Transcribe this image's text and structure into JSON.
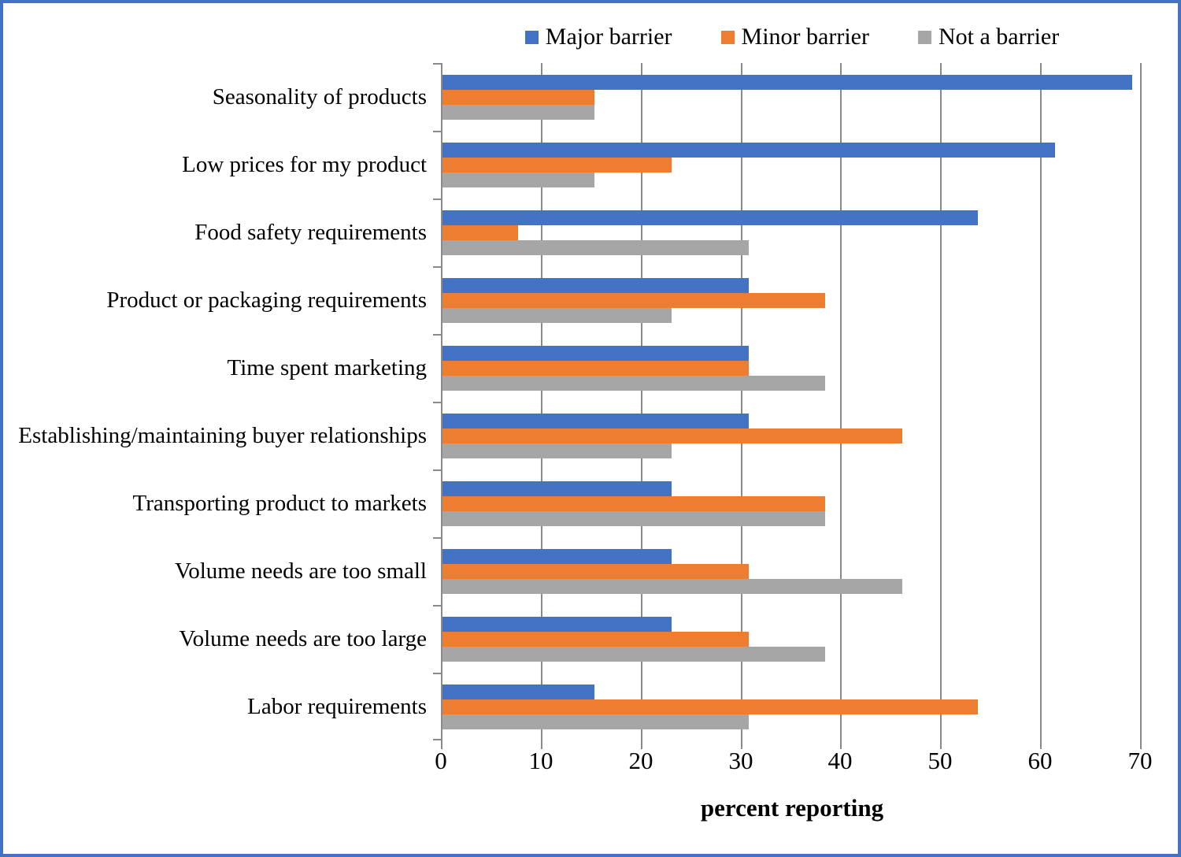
{
  "legend": [
    {
      "label": "Major barrier",
      "color": "#4472C4"
    },
    {
      "label": "Minor barrier",
      "color": "#ED7D31"
    },
    {
      "label": "Not a barrier",
      "color": "#A6A6A6"
    }
  ],
  "chart_data": {
    "type": "bar",
    "orientation": "horizontal",
    "title": "",
    "xlabel": "percent reporting",
    "ylabel": "",
    "xlim": [
      0,
      70
    ],
    "x_ticks": [
      0,
      10,
      20,
      30,
      40,
      50,
      60,
      70
    ],
    "grid": true,
    "legend_position": "top",
    "categories": [
      "Seasonality of products",
      "Low prices for my product",
      "Food safety requirements",
      "Product or packaging requirements",
      "Time spent marketing",
      "Establishing/maintaining buyer relationships",
      "Transporting product to markets",
      "Volume needs are too small",
      "Volume needs are too large",
      "Labor requirements"
    ],
    "series": [
      {
        "name": "Major barrier",
        "color": "#4472C4",
        "values": [
          69.2,
          61.5,
          53.8,
          30.8,
          30.8,
          30.8,
          23.1,
          23.1,
          23.1,
          15.4
        ]
      },
      {
        "name": "Minor barrier",
        "color": "#ED7D31",
        "values": [
          15.4,
          23.1,
          7.7,
          38.5,
          30.8,
          46.2,
          38.5,
          30.8,
          30.8,
          53.8
        ]
      },
      {
        "name": "Not a barrier",
        "color": "#A6A6A6",
        "values": [
          15.4,
          15.4,
          30.8,
          23.1,
          38.5,
          23.1,
          38.5,
          46.2,
          38.5,
          30.8
        ]
      }
    ]
  },
  "colors": {
    "frame_border": "#4472C4",
    "gridline": "#8A8A8A",
    "axis": "#8A8A8A",
    "background": "#FFFFFF"
  }
}
